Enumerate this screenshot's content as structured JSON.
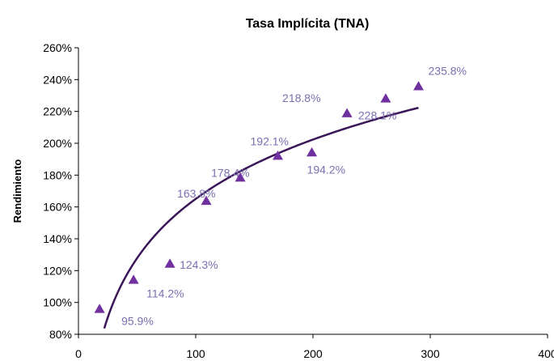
{
  "chart_data": {
    "type": "scatter",
    "title": "Tasa Implícita (TNA)",
    "xlabel": "",
    "ylabel": "Rendimiento",
    "xlim": [
      0,
      400
    ],
    "ylim": [
      0.8,
      2.6
    ],
    "x_ticks": [
      "0",
      "100",
      "200",
      "300",
      "400"
    ],
    "y_ticks": [
      "80%",
      "100%",
      "120%",
      "140%",
      "160%",
      "180%",
      "200%",
      "220%",
      "240%",
      "260%"
    ],
    "grid": false,
    "legend": "none",
    "marker": "triangle",
    "marker_color": "#7030a0",
    "label_color": "#7b6fb0",
    "trendline_color": "#3b1658",
    "trendline": {
      "type": "logarithmic",
      "x_range": [
        20,
        290
      ]
    },
    "points": [
      {
        "x": 18,
        "y": 0.959,
        "label": "95.9%"
      },
      {
        "x": 47,
        "y": 1.142,
        "label": "114.2%"
      },
      {
        "x": 78,
        "y": 1.243,
        "label": "124.3%"
      },
      {
        "x": 109,
        "y": 1.638,
        "label": "163.8%"
      },
      {
        "x": 138,
        "y": 1.784,
        "label": "178.4%"
      },
      {
        "x": 170,
        "y": 1.921,
        "label": "192.1%"
      },
      {
        "x": 199,
        "y": 1.942,
        "label": "194.2%"
      },
      {
        "x": 229,
        "y": 2.188,
        "label": "218.8%"
      },
      {
        "x": 262,
        "y": 2.281,
        "label": "228.1%"
      },
      {
        "x": 290,
        "y": 2.358,
        "label": "235.8%"
      }
    ]
  }
}
